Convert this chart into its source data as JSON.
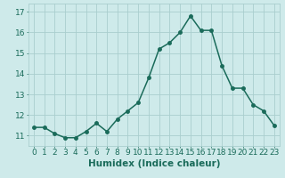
{
  "x": [
    0,
    1,
    2,
    3,
    4,
    5,
    6,
    7,
    8,
    9,
    10,
    11,
    12,
    13,
    14,
    15,
    16,
    17,
    18,
    19,
    20,
    21,
    22,
    23
  ],
  "y": [
    11.4,
    11.4,
    11.1,
    10.9,
    10.9,
    11.2,
    11.6,
    11.2,
    11.8,
    12.2,
    12.6,
    13.8,
    15.2,
    15.5,
    16.0,
    16.8,
    16.1,
    16.1,
    14.4,
    13.3,
    13.3,
    12.5,
    12.2,
    11.5
  ],
  "line_color": "#1a6b5a",
  "marker": "o",
  "markersize": 2.5,
  "linewidth": 1.1,
  "xlabel": "Humidex (Indice chaleur)",
  "xlabel_fontsize": 7.5,
  "ylabel_ticks": [
    11,
    12,
    13,
    14,
    15,
    16,
    17
  ],
  "ylim": [
    10.5,
    17.4
  ],
  "xlim": [
    -0.5,
    23.5
  ],
  "xtick_labels": [
    "0",
    "1",
    "2",
    "3",
    "4",
    "5",
    "6",
    "7",
    "8",
    "9",
    "10",
    "11",
    "12",
    "13",
    "14",
    "15",
    "16",
    "17",
    "18",
    "19",
    "20",
    "21",
    "22",
    "23"
  ],
  "background_color": "#ceeaea",
  "grid_color": "#aacece",
  "tick_fontsize": 6.5
}
